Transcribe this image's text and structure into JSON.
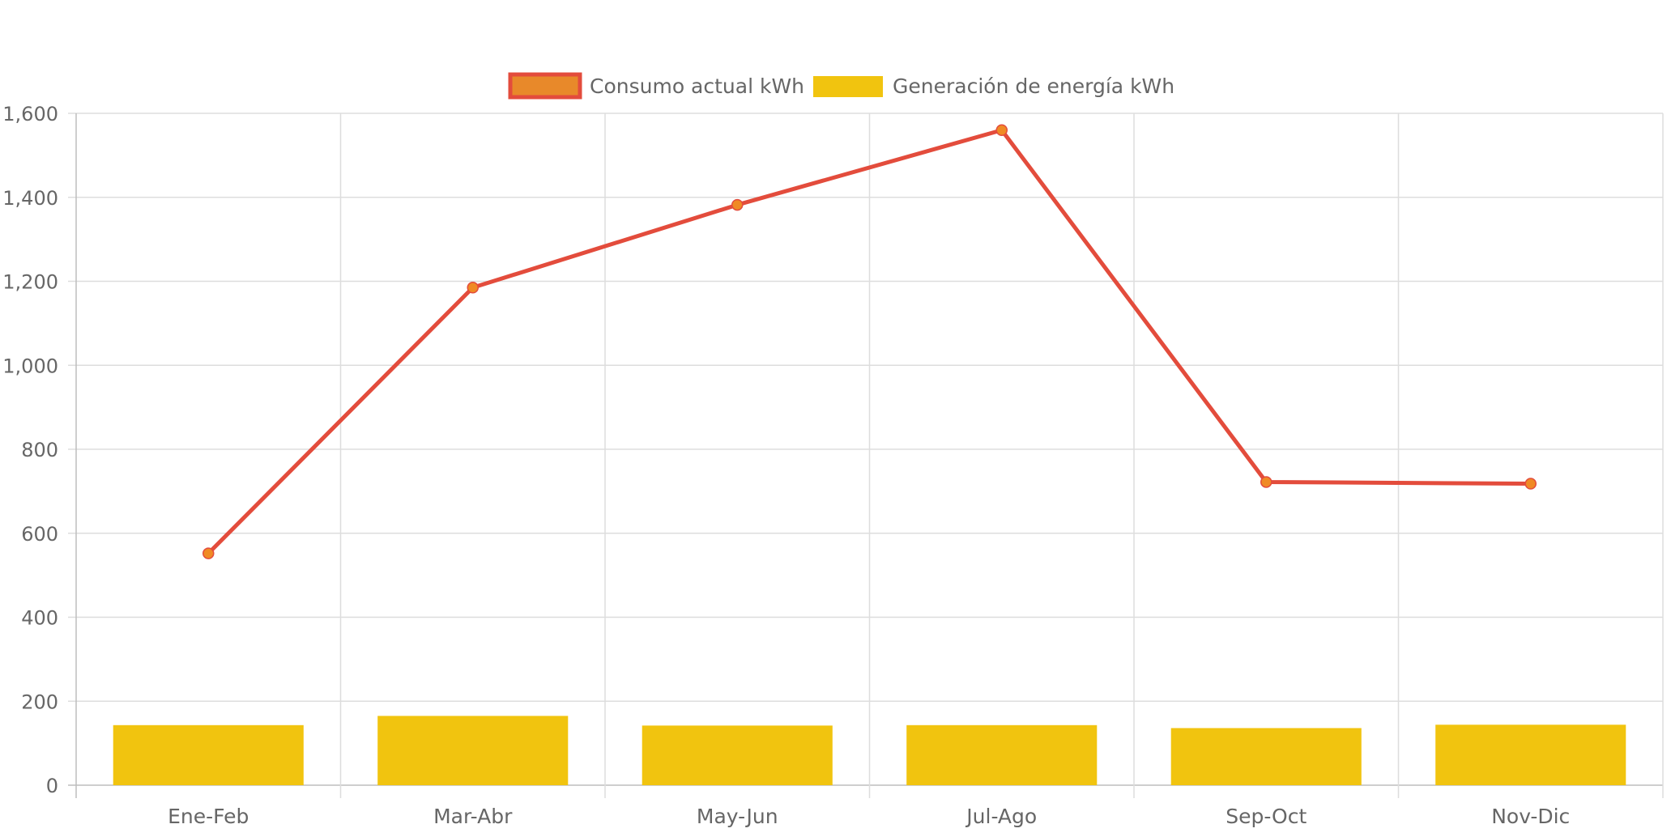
{
  "chart_data": {
    "type": "bar",
    "title": "",
    "xlabel": "",
    "ylabel": "",
    "categories": [
      "Ene-Feb",
      "Mar-Abr",
      "May-Jun",
      "Jul-Ago",
      "Sep-Oct",
      "Nov-Dic"
    ],
    "ylim": [
      0,
      1600
    ],
    "yticks": [
      0,
      200,
      400,
      600,
      800,
      1000,
      1200,
      1400,
      1600
    ],
    "ytick_labels": [
      "0",
      "200",
      "400",
      "600",
      "800",
      "1,000",
      "1,200",
      "1,400",
      "1,600"
    ],
    "grid": true,
    "legend_position": "top",
    "series": [
      {
        "name": "Consumo actual kWh",
        "type": "line",
        "values": [
          552,
          1185,
          1382,
          1560,
          722,
          718
        ],
        "color": "#e34c3c",
        "point_color": "#f08a24"
      },
      {
        "name": "Generación de energía kWh",
        "type": "bar",
        "values": [
          143,
          165,
          142,
          143,
          136,
          144
        ],
        "color": "#f1c40f"
      }
    ]
  }
}
